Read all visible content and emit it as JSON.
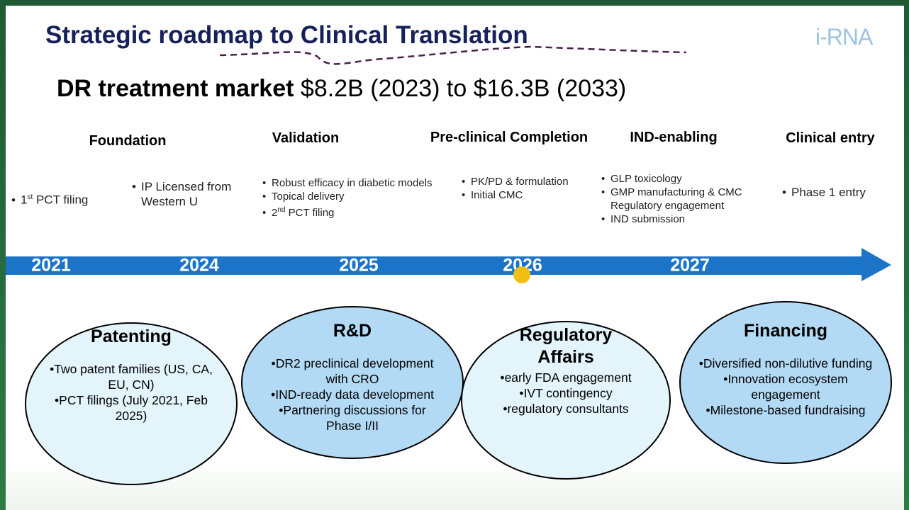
{
  "header": {
    "title": "Strategic roadmap to Clinical Translation",
    "logo": "i-RNA"
  },
  "market": {
    "label": "DR treatment market",
    "value": "$8.2B (2023) to $16.3B (2033)"
  },
  "milestones": [
    {
      "title": "Foundation",
      "items": [
        {
          "base": "1",
          "sup": "st",
          "rest": " PCT filing"
        },
        "IP Licensed from Western U"
      ]
    },
    {
      "title": "Validation",
      "items": [
        "Robust efficacy in diabetic models",
        "Topical delivery",
        {
          "base": "2",
          "sup": "nd",
          "rest": " PCT filing"
        }
      ]
    },
    {
      "title": "Pre-clinical Completion",
      "items": [
        "PK/PD & formulation",
        "Initial CMC"
      ]
    },
    {
      "title": "IND-enabling",
      "items": [
        "GLP toxicology",
        "GMP manufacturing & CMC",
        "Regulatory engagement",
        "IND submission"
      ]
    },
    {
      "title": "Clinical entry",
      "items": [
        "Phase 1 entry"
      ]
    }
  ],
  "timeline": [
    "2021",
    "2024",
    "2025",
    "2026",
    "2027"
  ],
  "pillars": [
    {
      "title": "Patenting",
      "items": [
        "Two patent families (US, CA, EU, CN)",
        "PCT filings (July 2021, Feb 2025)"
      ]
    },
    {
      "title": "R&D",
      "items": [
        "DR2 preclinical development with CRO",
        "IND-ready data development",
        "Partnering discussions for Phase I/II"
      ]
    },
    {
      "title": "Regulatory Affairs",
      "items": [
        "early FDA engagement",
        "IVT contingency",
        "regulatory consultants"
      ]
    },
    {
      "title": "Financing",
      "items": [
        "Diversified non-dilutive funding",
        "Innovation ecosystem engagement",
        "Milestone-based fundraising"
      ]
    }
  ]
}
